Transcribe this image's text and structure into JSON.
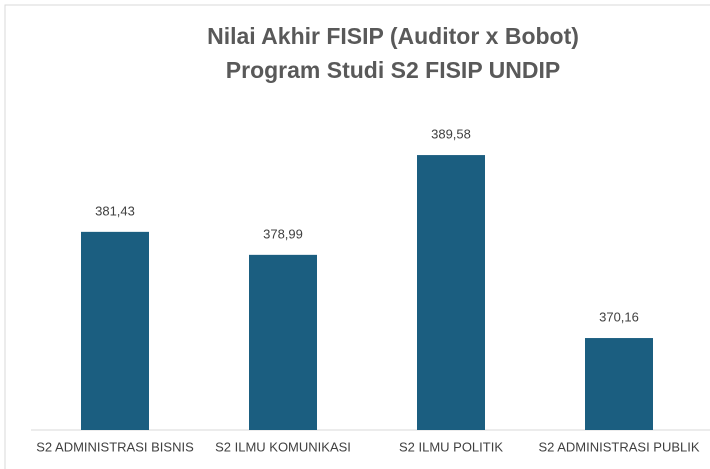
{
  "chart_data": {
    "type": "bar",
    "title": [
      "Nilai Akhir FISIP (Auditor x Bobot)",
      "Program Studi S2 FISIP UNDIP"
    ],
    "categories": [
      "S2 ADMINISTRASI BISNIS",
      "S2 ILMU KOMUNIKASI",
      "S2 ILMU POLITIK",
      "S2 ADMINISTRASI PUBLIK"
    ],
    "values": [
      381.43,
      378.99,
      389.58,
      370.16
    ],
    "value_labels": [
      "381,43",
      "378,99",
      "389,58",
      "370,16"
    ],
    "color": "#1b5e80",
    "ylim": [
      360.4,
      395
    ]
  }
}
